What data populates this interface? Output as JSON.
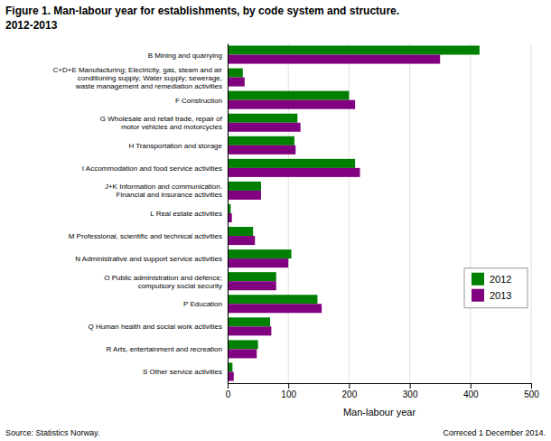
{
  "chart_data": {
    "type": "bar",
    "orientation": "horizontal",
    "title": "Figure 1. Man-labour year for establishments, by code system and structure.",
    "subtitle": "2012-2013",
    "categories": [
      "B Mining and quarrying",
      "C+D+E Manufacturing; Electricity, gas, steam and air\nconditioning supply; Water supply; sewerage,\nwaste management and remediation activities",
      "F Construction",
      "G Wholesale and retail trade, repair of\nmotor vehicles and motorcycles",
      "H Transportation and storage",
      "I Accommodation and food service activities",
      "J+K Information and communication.\nFinancial and insurance activities",
      "L Real estate activities",
      "M Professional, scientific and technical activities",
      "N Administrative and support service activities",
      "O Public administration and defence;\ncompulsory social security",
      "P Education",
      "Q Human health and social work activities",
      "R Arts, entertainment and recreation",
      "S Other service activities"
    ],
    "series": [
      {
        "name": "2012",
        "color": "#008000",
        "values": [
          415,
          25,
          200,
          115,
          110,
          210,
          55,
          5,
          42,
          105,
          80,
          148,
          70,
          50,
          8
        ]
      },
      {
        "name": "2013",
        "color": "#800080",
        "values": [
          350,
          28,
          210,
          120,
          112,
          218,
          55,
          7,
          45,
          100,
          80,
          155,
          72,
          48,
          10
        ]
      }
    ],
    "x_label": "Man-labour year",
    "xlim": [
      0,
      500
    ],
    "xticks": [
      0,
      100,
      200,
      300,
      400,
      500
    ],
    "grid": true,
    "legend": "lower right",
    "annotations": [
      "Source: Statistics Norway.",
      "Correced 1 December 2014."
    ]
  }
}
